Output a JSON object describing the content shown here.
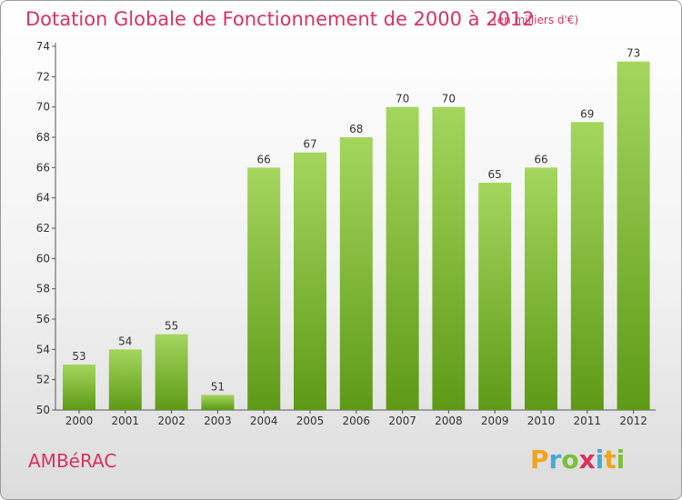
{
  "title": "Dotation Globale de Fonctionnement de 2000 à 2012",
  "subtitle": "(en milliers d'€)",
  "commune": "AMBéRAC",
  "logo": {
    "letters": [
      "P",
      "r",
      "o",
      "x",
      "i",
      "t",
      "i"
    ],
    "colors": [
      "#f0a51e",
      "#4aa8d8",
      "#7bbf3a",
      "#d8325e",
      "#4aa8d8",
      "#f0a51e",
      "#7bbf3a"
    ]
  },
  "colors": {
    "accent": "#d8325e",
    "bar_top": "#a4d65e",
    "bar_bottom": "#5e9a16"
  },
  "chart_data": {
    "type": "bar",
    "categories": [
      "2000",
      "2001",
      "2002",
      "2003",
      "2004",
      "2005",
      "2006",
      "2007",
      "2008",
      "2009",
      "2010",
      "2011",
      "2012"
    ],
    "values": [
      53,
      54,
      55,
      51,
      66,
      67,
      68,
      70,
      70,
      65,
      66,
      69,
      73
    ],
    "ylim": [
      50,
      74
    ],
    "yticks": [
      50,
      52,
      54,
      56,
      58,
      60,
      62,
      64,
      66,
      68,
      70,
      72,
      74
    ],
    "grid": false,
    "xlabel": "",
    "ylabel": ""
  }
}
